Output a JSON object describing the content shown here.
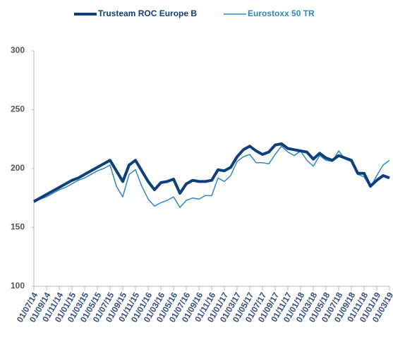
{
  "chart_data": {
    "type": "line",
    "categories": [
      "01/07/14",
      null,
      "01/09/14",
      null,
      "01/11/14",
      null,
      "01/01/15",
      null,
      "01/03/15",
      null,
      "01/05/15",
      null,
      "01/07/15",
      null,
      "01/09/15",
      null,
      "01/11/15",
      null,
      "01/01/16",
      null,
      "01/03/16",
      null,
      "01/05/16",
      null,
      "01/07/16",
      null,
      "01/09/16",
      null,
      "01/11/16",
      null,
      "01/01/17",
      null,
      "01/03/17",
      null,
      "01/05/17",
      null,
      "01/07/17",
      null,
      "01/09/17",
      null,
      "01/11/17",
      null,
      "01/01/18",
      null,
      "01/03/18",
      null,
      "01/05/18",
      null,
      "01/07/18",
      null,
      "01/09/18",
      null,
      "01/11/18",
      null,
      "01/01/19",
      null,
      "01/03/19"
    ],
    "series": [
      {
        "name": "Trusteam ROC Europe B",
        "color": "#0d3f7a",
        "width": 4,
        "values": [
          172,
          175,
          178,
          181,
          184,
          187,
          190,
          192,
          195,
          198,
          201,
          204,
          207,
          198,
          189,
          203,
          207,
          198,
          189,
          182,
          188,
          189,
          191,
          179,
          187,
          190,
          189,
          189,
          190,
          199,
          198,
          201,
          210,
          216,
          219,
          215,
          212,
          214,
          220,
          221,
          217,
          216,
          215,
          214,
          208,
          213,
          209,
          207,
          211,
          209,
          207,
          196,
          196,
          185,
          190,
          194,
          192
        ]
      },
      {
        "name": "Eurostoxx 50 TR",
        "color": "#2f86c4",
        "width": 1.5,
        "values": [
          171,
          174,
          176,
          179,
          182,
          184,
          187,
          190,
          192,
          195,
          198,
          200,
          203,
          185,
          176,
          195,
          199,
          185,
          174,
          168,
          171,
          173,
          176,
          167,
          173,
          175,
          174,
          177,
          177,
          192,
          189,
          194,
          206,
          210,
          212,
          205,
          205,
          204,
          212,
          219,
          214,
          211,
          215,
          207,
          202,
          211,
          207,
          206,
          215,
          208,
          206,
          195,
          193,
          184,
          194,
          203,
          207
        ]
      }
    ],
    "ylim": [
      100,
      300
    ],
    "yticks": [
      100,
      150,
      200,
      250,
      300
    ],
    "legend": "top"
  }
}
